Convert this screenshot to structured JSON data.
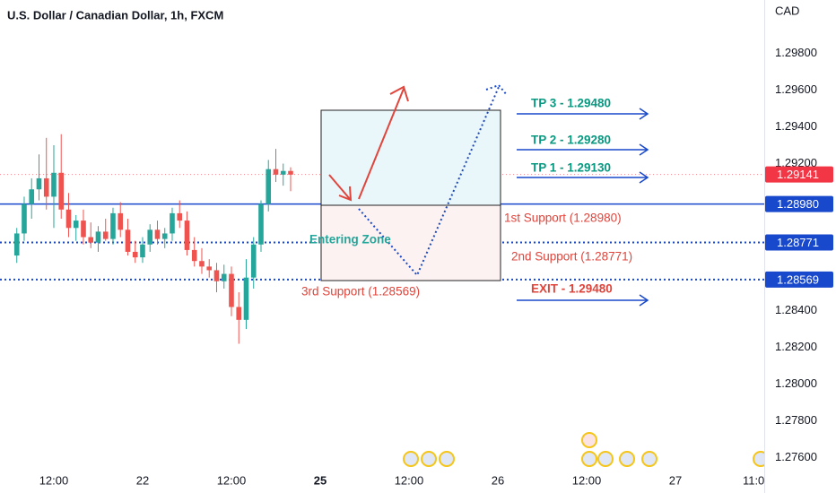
{
  "chart_data": {
    "type": "candlestick",
    "title": "U.S. Dollar / Canadian Dollar, 1h, FXCM",
    "y_axis_label": "CAD",
    "up_color": "#26a69a",
    "down_color": "#ef5350",
    "x": [
      -5,
      -4,
      -3,
      -2,
      -1,
      0,
      1,
      2,
      3,
      4,
      5,
      6,
      7,
      8,
      9,
      10,
      11,
      12,
      13,
      14,
      15,
      16,
      17,
      18,
      19,
      20,
      21,
      22,
      23,
      24,
      25,
      26,
      27,
      28,
      29,
      30,
      31,
      32
    ],
    "open": [
      1.287,
      1.2882,
      1.2898,
      1.2906,
      1.2912,
      1.2902,
      1.2915,
      1.2895,
      1.2885,
      1.2889,
      1.288,
      1.2877,
      1.2883,
      1.2879,
      1.2893,
      1.2884,
      1.2872,
      1.2869,
      1.2876,
      1.2884,
      1.2879,
      1.2882,
      1.2893,
      1.2889,
      1.2873,
      1.2867,
      1.2864,
      1.2862,
      1.2856,
      1.286,
      1.2842,
      1.2835,
      1.2858,
      1.2876,
      1.2898,
      1.2917,
      1.2914,
      1.2916
    ],
    "high": [
      1.2885,
      1.2902,
      1.2912,
      1.2925,
      1.2934,
      1.293,
      1.2936,
      1.2904,
      1.2892,
      1.2895,
      1.2888,
      1.2886,
      1.289,
      1.2896,
      1.2899,
      1.289,
      1.2878,
      1.288,
      1.2887,
      1.2889,
      1.2885,
      1.2896,
      1.29,
      1.2894,
      1.288,
      1.2874,
      1.2868,
      1.2866,
      1.2865,
      1.2864,
      1.285,
      1.2868,
      1.288,
      1.29,
      1.2922,
      1.2928,
      1.292,
      1.2918
    ],
    "low": [
      1.2866,
      1.2878,
      1.289,
      1.29,
      1.2895,
      1.2885,
      1.289,
      1.288,
      1.2878,
      1.2876,
      1.2874,
      1.2872,
      1.2878,
      1.2876,
      1.288,
      1.287,
      1.2866,
      1.2866,
      1.2872,
      1.2876,
      1.2874,
      1.2878,
      1.2885,
      1.287,
      1.2864,
      1.286,
      1.2858,
      1.285,
      1.2852,
      1.2837,
      1.2822,
      1.283,
      1.2852,
      1.2872,
      1.2894,
      1.291,
      1.2908,
      1.2905
    ],
    "close": [
      1.2882,
      1.2898,
      1.2906,
      1.2912,
      1.2902,
      1.2915,
      1.2895,
      1.2885,
      1.2889,
      1.288,
      1.2877,
      1.2883,
      1.2879,
      1.2893,
      1.2884,
      1.2872,
      1.2869,
      1.2876,
      1.2884,
      1.2879,
      1.2882,
      1.2893,
      1.2889,
      1.2873,
      1.2867,
      1.2864,
      1.2862,
      1.2856,
      1.286,
      1.2842,
      1.2835,
      1.2858,
      1.2876,
      1.2898,
      1.2917,
      1.2914,
      1.2916,
      1.2914
    ],
    "xlim": [
      -7.27,
      96
    ],
    "xticks": [
      {
        "value": 0,
        "label": "12:00"
      },
      {
        "value": 12,
        "label": "22"
      },
      {
        "value": 24,
        "label": "12:00"
      },
      {
        "value": 36,
        "label": "25"
      },
      {
        "value": 48,
        "label": "12:00"
      },
      {
        "value": 60,
        "label": "26"
      },
      {
        "value": 72,
        "label": "12:00"
      },
      {
        "value": 84,
        "label": "27"
      },
      {
        "value": 95,
        "label": "11:00"
      }
    ],
    "ylim": [
      1.2753,
      1.3009
    ],
    "yticks": [
      {
        "value": 1.298,
        "label": "1.29800"
      },
      {
        "value": 1.296,
        "label": "1.29600"
      },
      {
        "value": 1.294,
        "label": "1.29400"
      },
      {
        "value": 1.292,
        "label": "1.29200"
      },
      {
        "value": 1.284,
        "label": "1.28400"
      },
      {
        "value": 1.282,
        "label": "1.28200"
      },
      {
        "value": 1.28,
        "label": "1.28000"
      },
      {
        "value": 1.278,
        "label": "1.27800"
      },
      {
        "value": 1.276,
        "label": "1.27600"
      }
    ],
    "price_lines": [
      {
        "value": 1.29141,
        "label": "1.29141",
        "color": "#f23645",
        "style": "dotted"
      },
      {
        "value": 1.2898,
        "label": "1.28980",
        "color": "#1848cc",
        "style": "solid"
      },
      {
        "value": 1.28771,
        "label": "1.28771",
        "color": "#1848cc",
        "style": "dotted"
      },
      {
        "value": 1.28569,
        "label": "1.28569",
        "color": "#1848cc",
        "style": "dotted"
      }
    ],
    "annotations": [
      "TP 3 - 1.29480",
      "TP 2 - 1.29280",
      "TP 1 - 1.29130",
      "1st Support (1.28980)",
      "2nd Support (1.28771)",
      "3rd Support (1.28569)",
      "EXIT - 1.29480",
      "Entering Zone"
    ]
  }
}
